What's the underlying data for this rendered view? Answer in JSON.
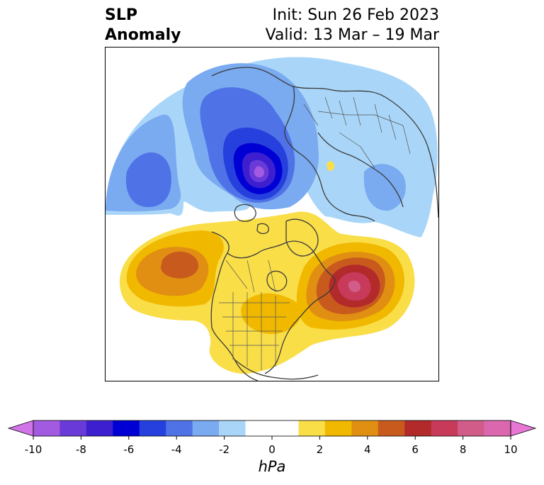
{
  "title": {
    "left_line1": "SLP",
    "left_line2": "Anomaly",
    "right_line1": "Init: Sun 26 Feb 2023",
    "right_line2": "Valid: 13 Mar – 19 Mar"
  },
  "colorbar": {
    "unit": "hPa",
    "min": -10,
    "max": 10,
    "step": 1,
    "extend": "both",
    "tick_values": [
      -10,
      -8,
      -6,
      -4,
      -2,
      0,
      2,
      4,
      6,
      8,
      10
    ],
    "tick_labels": [
      "-10",
      "-8",
      "-6",
      "-4",
      "-2",
      "0",
      "2",
      "4",
      "6",
      "8",
      "10"
    ],
    "colors": [
      "#d074e8",
      "#a25ae0",
      "#6a3ad8",
      "#3d1fd0",
      "#0000d4",
      "#2640de",
      "#4f72e6",
      "#7aaaf0",
      "#a9d6f8",
      "#ffffff",
      "#ffffff",
      "#f9de48",
      "#f1b800",
      "#e08f12",
      "#c85a1e",
      "#b22a2a",
      "#c83a5a",
      "#d15c8a",
      "#db68ae",
      "#e876d4"
    ]
  },
  "map": {
    "projection": "polar-stereographic",
    "region": "Northern Hemisphere (North America, Arctic, North Atlantic)",
    "features": [
      {
        "name": "negative-anomaly-arctic",
        "type": "low",
        "peak_hPa": -9
      },
      {
        "name": "negative-anomaly-north-pacific",
        "type": "low",
        "peak_hPa": -5
      },
      {
        "name": "negative-anomaly-siberia",
        "type": "low",
        "peak_hPa": -3
      },
      {
        "name": "positive-anomaly-alaska",
        "type": "high",
        "peak_hPa": 5
      },
      {
        "name": "positive-anomaly-north-atlantic",
        "type": "high",
        "peak_hPa": 8
      },
      {
        "name": "positive-anomaly-eastern-us",
        "type": "high",
        "peak_hPa": 3
      }
    ]
  }
}
